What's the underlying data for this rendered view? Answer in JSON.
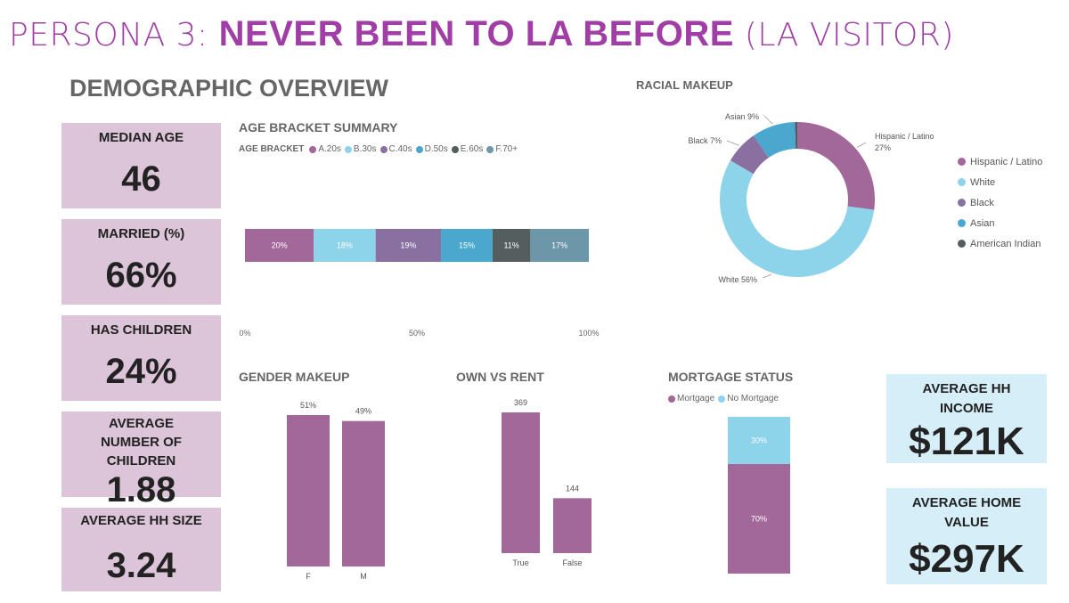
{
  "header": {
    "persona_prefix": "PERSONA 3: ",
    "persona_name": "NEVER BEEN TO LA BEFORE",
    "persona_suffix": " (LA VISITOR)",
    "section_title": "DEMOGRAPHIC OVERVIEW"
  },
  "kpis": [
    {
      "label": "MEDIAN AGE",
      "value": "46"
    },
    {
      "label": "MARRIED (%)",
      "value": "66%"
    },
    {
      "label": "HAS CHILDREN",
      "value": "24%"
    },
    {
      "label": "AVERAGE NUMBER OF CHILDREN",
      "value": "1.88"
    },
    {
      "label": "AVERAGE HH SIZE",
      "value": "3.24"
    }
  ],
  "kpis_right": [
    {
      "label": "AVERAGE HH INCOME",
      "value": "$121K"
    },
    {
      "label": "AVERAGE HOME VALUE",
      "value": "$297K"
    }
  ],
  "colors": {
    "primary": "#a3689a",
    "light_blue": "#8dd3ea",
    "purple": "#8a70a0",
    "blue": "#4aa8cf",
    "dark_gray": "#555e5e",
    "teal": "#6b97a8",
    "kpi_bg": "#dcc4d9",
    "kpi_right_bg": "#d5eef8",
    "title": "#a03ea6"
  },
  "chart_data": [
    {
      "id": "age",
      "type": "bar",
      "orientation": "horizontal-stacked-100",
      "title": "AGE BRACKET SUMMARY",
      "legend_title": "AGE BRACKET",
      "series": [
        {
          "name": "A.20s",
          "value": 20,
          "label": "20%"
        },
        {
          "name": "B.30s",
          "value": 18,
          "label": "18%"
        },
        {
          "name": "C.40s",
          "value": 19,
          "label": "19%"
        },
        {
          "name": "D.50s",
          "value": 15,
          "label": "15%"
        },
        {
          "name": "E.60s",
          "value": 11,
          "label": "11%"
        },
        {
          "name": "F.70+",
          "value": 17,
          "label": "17%"
        }
      ],
      "ticks": [
        "0%",
        "50%",
        "100%"
      ],
      "xlim": [
        0,
        100
      ]
    },
    {
      "id": "race",
      "type": "pie",
      "style": "donut",
      "title": "RACIAL MAKEUP",
      "slices": [
        {
          "name": "Hispanic / Latino",
          "value": 27,
          "label": "Hispanic / Latino",
          "pct": "27%"
        },
        {
          "name": "White",
          "value": 56,
          "label": "White 56%"
        },
        {
          "name": "Black",
          "value": 7,
          "label": "Black 7%"
        },
        {
          "name": "Asian",
          "value": 9,
          "label": "Asian 9%"
        },
        {
          "name": "American Indian",
          "value": 0.5,
          "label": ""
        }
      ],
      "legend": [
        "Hispanic / Latino",
        "White",
        "Black",
        "Asian",
        "American Indian"
      ]
    },
    {
      "id": "gender",
      "type": "bar",
      "title": "GENDER MAKEUP",
      "categories": [
        "F",
        "M"
      ],
      "values": [
        51,
        49
      ],
      "labels": [
        "51%",
        "49%"
      ],
      "ylim": [
        0,
        51
      ]
    },
    {
      "id": "own",
      "type": "bar",
      "title": "OWN VS RENT",
      "categories": [
        "True",
        "False"
      ],
      "values": [
        369,
        144
      ],
      "labels": [
        "369",
        "144"
      ],
      "ylim": [
        0,
        369
      ]
    },
    {
      "id": "mortgage",
      "type": "bar",
      "orientation": "vertical-stacked-100",
      "title": "MORTGAGE STATUS",
      "series": [
        {
          "name": "Mortgage",
          "value": 70,
          "label": "70%"
        },
        {
          "name": "No Mortgage",
          "value": 30,
          "label": "30%"
        }
      ]
    }
  ]
}
